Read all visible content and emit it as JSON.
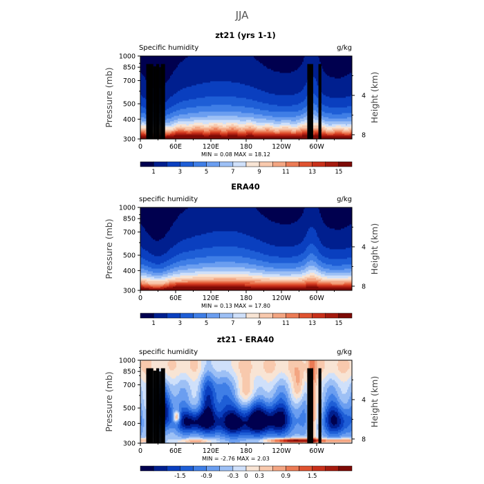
{
  "figure": {
    "title": "JJA"
  },
  "colors": {
    "full_palette": [
      "#00004f",
      "#001f8f",
      "#0a3fbf",
      "#1e5ed6",
      "#3f7ee6",
      "#6b9ef0",
      "#9dc0f5",
      "#cfe0fa",
      "#f8e4d4",
      "#f8c9ad",
      "#f3a582",
      "#eb7b55",
      "#df5230",
      "#c8301a",
      "#a51a0e",
      "#7d0a06"
    ],
    "diff_palette": [
      "#00004f",
      "#001f8f",
      "#0a3fbf",
      "#1e5ed6",
      "#3f7ee6",
      "#6b9ef0",
      "#9dc0f5",
      "#cfe0fa",
      "#f8e4d4",
      "#f8c9ad",
      "#f3a582",
      "#eb7b55",
      "#df5230",
      "#c8301a",
      "#a51a0e",
      "#7d0a06"
    ],
    "terrain": "#000000"
  },
  "chart_data": [
    {
      "type": "heatmap",
      "title": "zt21 (yrs 1-1)",
      "left_label": "Specific humidity",
      "units": "g/kg",
      "ylabel": "Pressure (mb)",
      "ylabel_right": "Height (km)",
      "xticks": [
        "0",
        "60E",
        "120E",
        "180",
        "120W",
        "60W"
      ],
      "xtick_values": [
        0,
        60,
        120,
        180,
        240,
        300
      ],
      "xlim": [
        0,
        360
      ],
      "yticks": [
        "300",
        "400",
        "500",
        "700",
        "850",
        "1000"
      ],
      "ytick_values": [
        300,
        400,
        500,
        700,
        850,
        1000
      ],
      "ylim": [
        1000,
        300
      ],
      "height_ticks": [
        "8",
        "4"
      ],
      "height_values": [
        8,
        4
      ],
      "stats": "MIN =    0.08   MAX =   18.12",
      "min": 0.08,
      "max": 18.12,
      "colorbar_labels": [
        "1",
        "3",
        "5",
        "7",
        "9",
        "11",
        "13",
        "15"
      ],
      "colorbar_values": [
        1,
        3,
        5,
        7,
        9,
        11,
        13,
        15
      ],
      "levels_min": 0,
      "levels_max": 16,
      "palette": "full",
      "terrain": true
    },
    {
      "type": "heatmap",
      "title": "ERA40",
      "left_label": "specific humidity",
      "units": "g/kg",
      "ylabel": "Pressure (mb)",
      "ylabel_right": "Height (km)",
      "xticks": [
        "0",
        "60E",
        "120E",
        "180",
        "120W",
        "60W"
      ],
      "xtick_values": [
        0,
        60,
        120,
        180,
        240,
        300
      ],
      "xlim": [
        0,
        360
      ],
      "yticks": [
        "300",
        "400",
        "500",
        "700",
        "850",
        "1000"
      ],
      "ytick_values": [
        300,
        400,
        500,
        700,
        850,
        1000
      ],
      "ylim": [
        1000,
        300
      ],
      "height_ticks": [
        "8",
        "4"
      ],
      "height_values": [
        8,
        4
      ],
      "stats": "MIN =    0.13   MAX =   17.80",
      "min": 0.13,
      "max": 17.8,
      "colorbar_labels": [
        "1",
        "3",
        "5",
        "7",
        "9",
        "11",
        "13",
        "15"
      ],
      "colorbar_values": [
        1,
        3,
        5,
        7,
        9,
        11,
        13,
        15
      ],
      "levels_min": 0,
      "levels_max": 16,
      "palette": "full",
      "terrain": false
    },
    {
      "type": "heatmap",
      "title": "zt21 - ERA40",
      "left_label": "specific humidity",
      "units": "g/kg",
      "ylabel": "Pressure (mb)",
      "ylabel_right": "Height (km)",
      "xticks": [
        "0",
        "60E",
        "120E",
        "180",
        "120W",
        "60W"
      ],
      "xtick_values": [
        0,
        60,
        120,
        180,
        240,
        300
      ],
      "xlim": [
        0,
        360
      ],
      "yticks": [
        "300",
        "400",
        "500",
        "700",
        "850",
        "1000"
      ],
      "ytick_values": [
        300,
        400,
        500,
        700,
        850,
        1000
      ],
      "ylim": [
        1000,
        300
      ],
      "height_ticks": [
        "8",
        "4"
      ],
      "height_values": [
        8,
        4
      ],
      "stats": "MIN =   -2.76   MAX =    2.03",
      "min": -2.76,
      "max": 2.03,
      "colorbar_labels": [
        "-1.5",
        "-0.9",
        "-0.3",
        "0",
        "0.3",
        "0.9",
        "1.5"
      ],
      "colorbar_values": [
        -1.5,
        -0.9,
        -0.3,
        0,
        0.3,
        0.9,
        1.5
      ],
      "levels_min": -2.4,
      "levels_max": 2.4,
      "palette": "diff",
      "terrain": true
    }
  ],
  "terrain_blocks": [
    {
      "lon0": 10,
      "lon1": 22,
      "p_top": 890
    },
    {
      "lon0": 22,
      "lon1": 27,
      "p_top": 860
    },
    {
      "lon0": 27,
      "lon1": 32,
      "p_top": 890
    },
    {
      "lon0": 32,
      "lon1": 35,
      "p_top": 850
    },
    {
      "lon0": 35,
      "lon1": 42,
      "p_top": 890
    },
    {
      "lon0": 284,
      "lon1": 294,
      "p_top": 890
    },
    {
      "lon0": 303,
      "lon1": 308,
      "p_top": 890
    }
  ]
}
